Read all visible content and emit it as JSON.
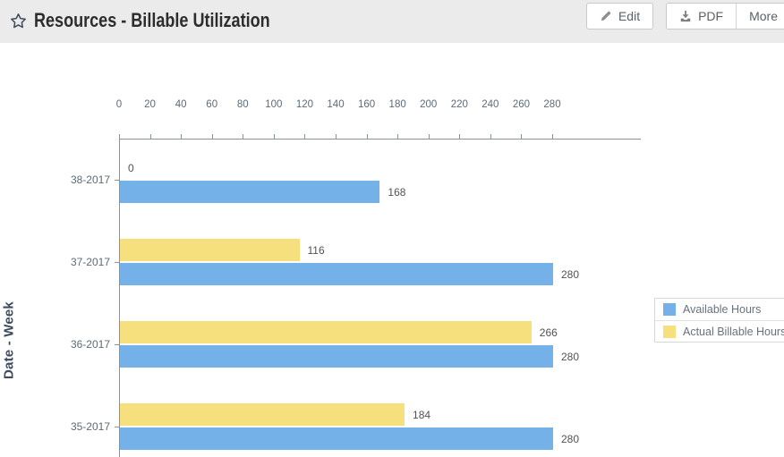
{
  "header": {
    "title": "Resources - Billable Utilization",
    "buttons": {
      "edit": "Edit",
      "pdf": "PDF",
      "more": "More"
    }
  },
  "chart_data": {
    "type": "bar",
    "orientation": "horizontal",
    "title": "",
    "xlabel": "",
    "ylabel": "Date - Week",
    "categories": [
      "38-2017",
      "37-2017",
      "36-2017",
      "35-2017"
    ],
    "series": [
      {
        "name": "Available Hours",
        "color": "#74b1e8",
        "values": [
          168,
          280,
          280,
          280
        ]
      },
      {
        "name": "Actual Billable Hours",
        "color": "#f6df7d",
        "values": [
          0,
          116,
          266,
          184
        ]
      }
    ],
    "xlim": [
      0,
      280
    ],
    "x_ticks": [
      0,
      20,
      40,
      60,
      80,
      100,
      120,
      140,
      160,
      180,
      200,
      220,
      240,
      260,
      280
    ],
    "legend_position": "right",
    "value_labels": true,
    "grid": false
  },
  "colors": {
    "header_bg": "#ebebeb",
    "axis": "#87939a",
    "tick_text": "#5d6a75",
    "value_text": "#525252",
    "title_text": "#2d2d2d"
  }
}
